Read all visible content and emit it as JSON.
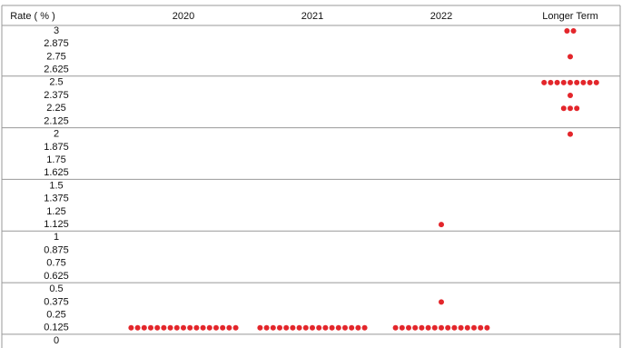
{
  "chart_data": {
    "type": "dot",
    "y_label": "Rate ( % )",
    "categories": [
      "2020",
      "2021",
      "2022",
      "Longer Term"
    ],
    "values": [
      [
        0.125,
        0.125,
        0.125,
        0.125,
        0.125,
        0.125,
        0.125,
        0.125,
        0.125,
        0.125,
        0.125,
        0.125,
        0.125,
        0.125,
        0.125,
        0.125,
        0.125
      ],
      [
        0.125,
        0.125,
        0.125,
        0.125,
        0.125,
        0.125,
        0.125,
        0.125,
        0.125,
        0.125,
        0.125,
        0.125,
        0.125,
        0.125,
        0.125,
        0.125,
        0.125
      ],
      [
        1.125,
        0.375,
        0.125,
        0.125,
        0.125,
        0.125,
        0.125,
        0.125,
        0.125,
        0.125,
        0.125,
        0.125,
        0.125,
        0.125,
        0.125,
        0.125,
        0.125
      ],
      [
        3,
        3,
        2.75,
        2.5,
        2.5,
        2.5,
        2.5,
        2.5,
        2.5,
        2.5,
        2.5,
        2.5,
        2.375,
        2.25,
        2.25,
        2.25,
        2
      ]
    ],
    "color": "#e3262b",
    "ylim": [
      0,
      3
    ],
    "yticks": [
      3,
      2.875,
      2.75,
      2.625,
      2.5,
      2.375,
      2.25,
      2.125,
      2,
      1.875,
      1.75,
      1.625,
      1.5,
      1.375,
      1.25,
      1.125,
      1,
      0.875,
      0.75,
      0.625,
      0.5,
      0.375,
      0.25,
      0.125,
      0
    ],
    "grid": true
  }
}
